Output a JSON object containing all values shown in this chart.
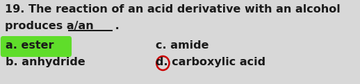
{
  "background_color": "#d8d8d8",
  "question_number": "19.",
  "question_text_line1": "The reaction of an acid derivative with an alcohol",
  "question_text_line2": "produces a/an",
  "underline_text": "________",
  "period": " .",
  "option_a_label": "a.",
  "option_a_text": "ester",
  "option_b_label": "b.",
  "option_b_text": "anhydride",
  "option_c_label": "c.",
  "option_c_text": "amide",
  "option_d_label": "d.",
  "option_d_text": "carboxylic acid",
  "highlight_color": "#5fdd2a",
  "circle_color": "#cc0000",
  "text_color": "#1a1a1a",
  "font_size_main": 11.5,
  "font_size_options": 11.5
}
